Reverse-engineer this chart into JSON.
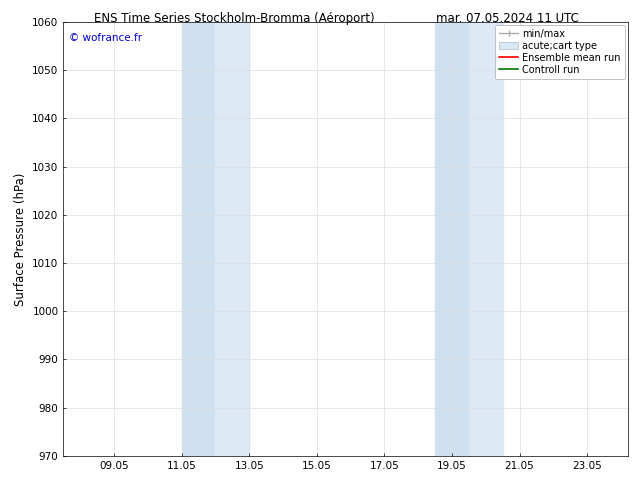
{
  "title_left": "ENS Time Series Stockholm-Bromma (Aéroport)",
  "title_right": "mar. 07.05.2024 11 UTC",
  "ylabel": "Surface Pressure (hPa)",
  "ylim": [
    970,
    1060
  ],
  "yticks": [
    970,
    980,
    990,
    1000,
    1010,
    1020,
    1030,
    1040,
    1050,
    1060
  ],
  "xtick_labels": [
    "09.05",
    "11.05",
    "13.05",
    "15.05",
    "17.05",
    "19.05",
    "21.05",
    "23.05"
  ],
  "xtick_positions": [
    9,
    11,
    13,
    15,
    17,
    19,
    21,
    23
  ],
  "copyright": "© wofrance.fr",
  "copyright_color": "#0000cc",
  "background_color": "#ffffff",
  "plot_bg_color": "#ffffff",
  "shaded_bands": [
    {
      "xmin": 11.0,
      "xmax": 12.0
    },
    {
      "xmin": 12.0,
      "xmax": 13.0
    },
    {
      "xmin": 18.5,
      "xmax": 19.5
    },
    {
      "xmin": 19.5,
      "xmax": 20.5
    }
  ],
  "band_colors": [
    "#cfe0f0",
    "#dde9f5",
    "#cfe0f0",
    "#dde9f5"
  ],
  "legend_entries": [
    {
      "label": "min/max",
      "color": "#aaaaaa",
      "lw": 1.0,
      "type": "line_caps"
    },
    {
      "label": "acute;cart type",
      "color": "#d8e8f5",
      "type": "fill"
    },
    {
      "label": "Ensemble mean run",
      "color": "#ff0000",
      "lw": 1.2,
      "type": "line"
    },
    {
      "label": "Controll run",
      "color": "#007700",
      "lw": 1.2,
      "type": "line"
    }
  ],
  "xmin": 7.5,
  "xmax": 24.2,
  "grid_color": "#dddddd",
  "tick_label_size": 7.5,
  "axis_label_size": 8.5,
  "title_fontsize": 8.5,
  "legend_fontsize": 7.0
}
